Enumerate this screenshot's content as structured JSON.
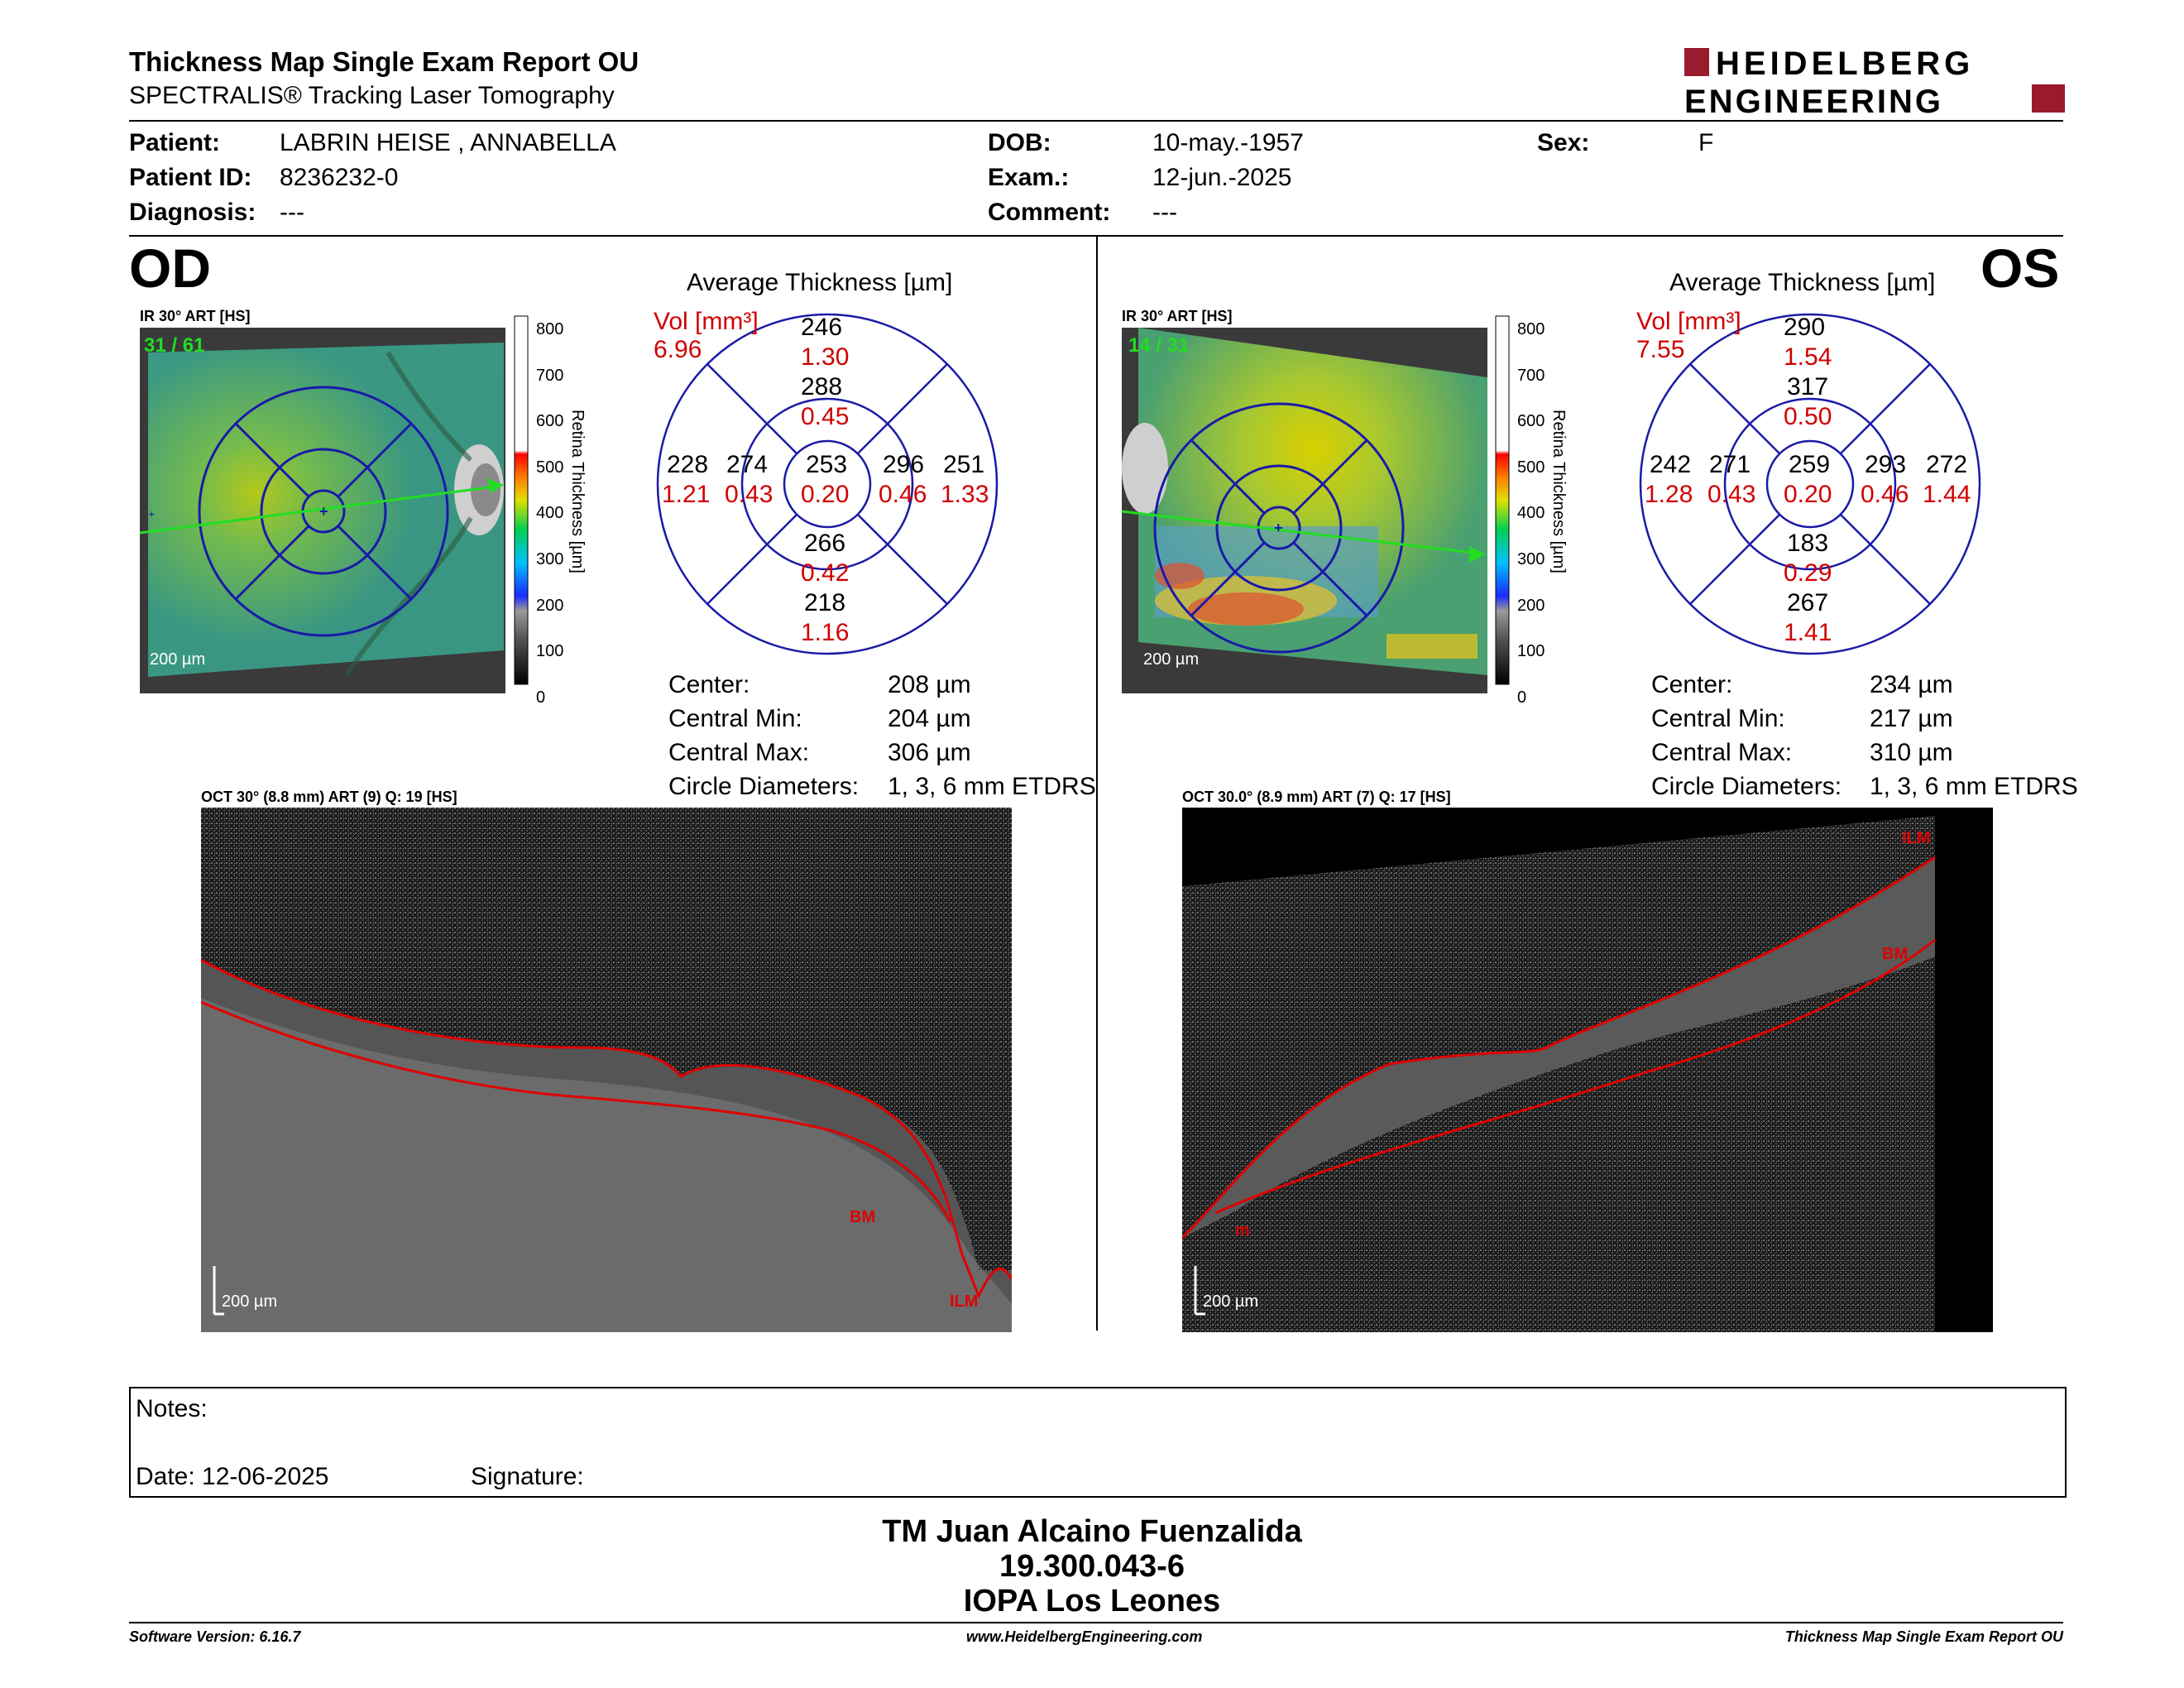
{
  "header": {
    "title": "Thickness Map Single Exam Report OU",
    "subtitle": "SPECTRALIS® Tracking Laser Tomography",
    "logo_line1": "HEIDELBERG",
    "logo_line2": "ENGINEERING"
  },
  "patient": {
    "patient_label": "Patient:",
    "patient_value": "LABRIN HEISE , ANNABELLA",
    "id_label": "Patient ID:",
    "id_value": "8236232-0",
    "diagnosis_label": "Diagnosis:",
    "diagnosis_value": "---",
    "dob_label": "DOB:",
    "dob_value": "10-may.-1957",
    "exam_label": "Exam.:",
    "exam_value": "12-jun.-2025",
    "comment_label": "Comment:",
    "comment_value": "---",
    "sex_label": "Sex:",
    "sex_value": "F"
  },
  "scale": {
    "ticks": [
      "800",
      "700",
      "600",
      "500",
      "400",
      "300",
      "200",
      "100",
      "0"
    ],
    "axis_label": "Retina Thickness [µm]"
  },
  "od": {
    "eye": "OD",
    "ir_label": "IR 30° ART [HS]",
    "frame_count": "31 / 61",
    "scale_bar": "200 µm",
    "avg_title": "Average Thickness [µm]",
    "vol_label": "Vol [mm³]",
    "vol_value": "6.96",
    "grid": {
      "center": {
        "t": "253",
        "v": "0.20"
      },
      "inner_sup": {
        "t": "288",
        "v": "0.45"
      },
      "outer_sup": {
        "t": "246",
        "v": "1.30"
      },
      "inner_inf": {
        "t": "266",
        "v": "0.42"
      },
      "outer_inf": {
        "t": "218",
        "v": "1.16"
      },
      "inner_left": {
        "t": "274",
        "v": "0.43"
      },
      "outer_left": {
        "t": "228",
        "v": "1.21"
      },
      "inner_right": {
        "t": "296",
        "v": "0.46"
      },
      "outer_right": {
        "t": "251",
        "v": "1.33"
      }
    },
    "stats": {
      "center_label": "Center:",
      "center_value": "208 µm",
      "min_label": "Central Min:",
      "min_value": "204 µm",
      "max_label": "Central Max:",
      "max_value": "306 µm",
      "circ_label": "Circle Diameters:",
      "circ_value": "1, 3, 6 mm ETDRS"
    },
    "oct_label": "OCT 30° (8.8 mm) ART (9) Q: 19 [HS]",
    "oct_scale": "200 µm",
    "oct_bm": "BM",
    "oct_ilm": "ILM"
  },
  "os": {
    "eye": "OS",
    "ir_label": "IR 30° ART [HS]",
    "frame_count": "14 / 31",
    "scale_bar": "200 µm",
    "avg_title": "Average Thickness [µm]",
    "vol_label": "Vol [mm³]",
    "vol_value": "7.55",
    "grid": {
      "center": {
        "t": "259",
        "v": "0.20"
      },
      "inner_sup": {
        "t": "317",
        "v": "0.50"
      },
      "outer_sup": {
        "t": "290",
        "v": "1.54"
      },
      "inner_inf": {
        "t": "183",
        "v": "0.29"
      },
      "outer_inf": {
        "t": "267",
        "v": "1.41"
      },
      "inner_left": {
        "t": "271",
        "v": "0.43"
      },
      "outer_left": {
        "t": "242",
        "v": "1.28"
      },
      "inner_right": {
        "t": "293",
        "v": "0.46"
      },
      "outer_right": {
        "t": "272",
        "v": "1.44"
      }
    },
    "stats": {
      "center_label": "Center:",
      "center_value": "234 µm",
      "min_label": "Central Min:",
      "min_value": "217 µm",
      "max_label": "Central Max:",
      "max_value": "310 µm",
      "circ_label": "Circle Diameters:",
      "circ_value": "1, 3, 6 mm ETDRS"
    },
    "oct_label": "OCT 30.0° (8.9 mm) ART (7) Q: 17 [HS]",
    "oct_scale": "200 µm",
    "oct_bm": "BM",
    "oct_ilm": "ILM",
    "oct_m": "m"
  },
  "notes": {
    "notes_label": "Notes:",
    "date_label": "Date: 12-06-2025",
    "signature_label": "Signature:"
  },
  "signoff": {
    "name": "TM Juan Alcaino Fuenzalida",
    "id": "19.300.043-6",
    "institution": "IOPA Los Leones"
  },
  "footer": {
    "software": "Software Version: 6.16.7",
    "website": "www.HeidelbergEngineering.com",
    "report": "Thickness Map Single Exam Report OU"
  },
  "colors": {
    "red_text": "#d00000",
    "grid_blue": "#1a1aa8",
    "logo_red": "#9b1b2e"
  }
}
